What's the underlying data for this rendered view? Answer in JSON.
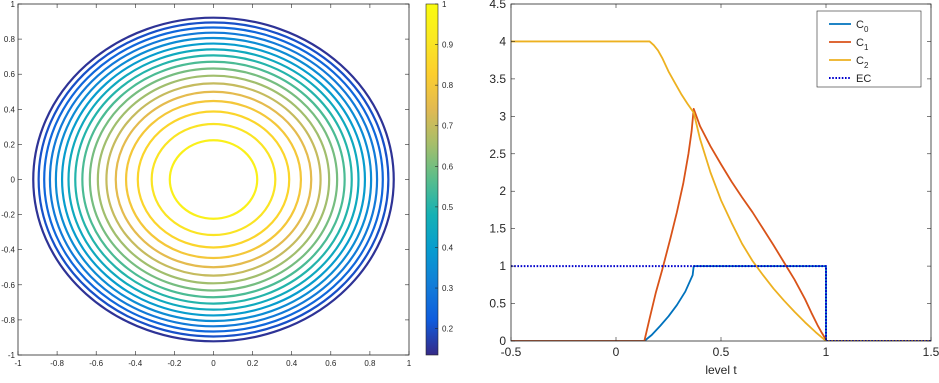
{
  "chart_data": [
    {
      "type": "contour",
      "title": "",
      "xlabel": "",
      "ylabel": "",
      "xlim": [
        -1,
        1
      ],
      "ylim": [
        -1,
        1
      ],
      "xticks": [
        "-1",
        "-0.8",
        "-0.6",
        "-0.4",
        "-0.2",
        "0",
        "0.2",
        "0.4",
        "0.6",
        "0.8",
        "1"
      ],
      "yticks": [
        "-1",
        "-0.8",
        "-0.6",
        "-0.4",
        "-0.2",
        "0",
        "0.2",
        "0.4",
        "0.6",
        "0.8",
        "1"
      ],
      "function": "f(x,y) = 1 - (x^2 + y^2)",
      "contour_levels": [
        0.15,
        0.2,
        0.25,
        0.3,
        0.35,
        0.4,
        0.45,
        0.5,
        0.55,
        0.6,
        0.65,
        0.7,
        0.75,
        0.8,
        0.85,
        0.9,
        0.95
      ],
      "colormap": "parula",
      "colorbar": {
        "range": [
          0.135,
          1.0
        ],
        "ticks": [
          "0.2",
          "0.3",
          "0.4",
          "0.5",
          "0.6",
          "0.7",
          "0.8",
          "0.9",
          "1"
        ],
        "tick_values": [
          0.2,
          0.3,
          0.4,
          0.5,
          0.6,
          0.7,
          0.8,
          0.9,
          1.0
        ]
      },
      "grid": false
    },
    {
      "type": "line",
      "title": "",
      "xlabel": "level t",
      "ylabel": "",
      "xlim": [
        -0.5,
        1.5
      ],
      "ylim": [
        0,
        4.5
      ],
      "xticks": [
        "-0.5",
        "0",
        "0.5",
        "1",
        "1.5"
      ],
      "xtick_values": [
        -0.5,
        0,
        0.5,
        1,
        1.5
      ],
      "yticks": [
        "0",
        "0.5",
        "1",
        "1.5",
        "2",
        "2.5",
        "3",
        "3.5",
        "4",
        "4.5"
      ],
      "ytick_values": [
        0,
        0.5,
        1,
        1.5,
        2,
        2.5,
        3,
        3.5,
        4,
        4.5
      ],
      "legend_position": "top-right",
      "grid": false,
      "series": [
        {
          "name": "C",
          "subscript": "0",
          "color": "#0072BD",
          "dash": "solid",
          "x": [
            -0.5,
            0.135,
            0.17,
            0.21,
            0.25,
            0.29,
            0.33,
            0.365,
            0.37,
            0.4,
            0.6,
            0.8,
            1.0,
            1.0,
            1.5
          ],
          "y": [
            0,
            0,
            0.08,
            0.2,
            0.33,
            0.48,
            0.66,
            0.88,
            1.0,
            1.0,
            1.0,
            1.0,
            1.0,
            0,
            0
          ]
        },
        {
          "name": "C",
          "subscript": "1",
          "color": "#D95319",
          "dash": "solid",
          "x": [
            -0.5,
            0.135,
            0.16,
            0.19,
            0.22,
            0.26,
            0.29,
            0.32,
            0.345,
            0.36,
            0.37,
            0.4,
            0.45,
            0.5,
            0.55,
            0.6,
            0.65,
            0.7,
            0.75,
            0.8,
            0.85,
            0.9,
            0.93,
            0.96,
            0.98,
            0.995,
            1.0,
            1.5
          ],
          "y": [
            0,
            0,
            0.3,
            0.65,
            0.95,
            1.38,
            1.72,
            2.1,
            2.5,
            2.8,
            3.1,
            2.87,
            2.6,
            2.36,
            2.13,
            1.92,
            1.72,
            1.5,
            1.28,
            1.05,
            0.82,
            0.56,
            0.38,
            0.21,
            0.11,
            0.04,
            0,
            0
          ]
        },
        {
          "name": "C",
          "subscript": "2",
          "color": "#EDB120",
          "dash": "solid",
          "x": [
            -0.5,
            0.135,
            0.16,
            0.18,
            0.2,
            0.22,
            0.25,
            0.28,
            0.31,
            0.34,
            0.37,
            0.4,
            0.45,
            0.5,
            0.55,
            0.6,
            0.65,
            0.7,
            0.75,
            0.8,
            0.85,
            0.9,
            0.95,
            1.0,
            1.5
          ],
          "y": [
            4,
            4,
            4,
            3.95,
            3.88,
            3.78,
            3.6,
            3.45,
            3.3,
            3.17,
            3.05,
            2.7,
            2.25,
            1.88,
            1.58,
            1.3,
            1.07,
            0.88,
            0.7,
            0.54,
            0.39,
            0.25,
            0.12,
            0,
            0
          ]
        },
        {
          "name": "EC",
          "subscript": "",
          "color": "#0000CC",
          "dash": "dotted",
          "x": [
            -0.5,
            1.0,
            1.0,
            1.5
          ],
          "y": [
            1,
            1,
            0,
            0
          ]
        }
      ]
    }
  ]
}
